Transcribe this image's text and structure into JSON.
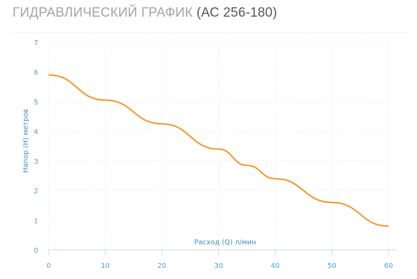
{
  "header": {
    "title_main": "ГИДРАВЛИЧЕСКИЙ ГРАФИК",
    "title_model": "(АС 256-180)"
  },
  "colors": {
    "line": "#f7931e",
    "axis_text": "#4d9fd6",
    "axis_line": "#c9d6ec",
    "grid": "#e0e0e0"
  },
  "chart_data": {
    "type": "line",
    "xlabel": "Расход (Q) л/мин",
    "ylabel": "Напор (H) метров",
    "xlim": [
      0,
      60
    ],
    "ylim": [
      0,
      7
    ],
    "x_ticks": [
      "0",
      "10",
      "20",
      "30",
      "40",
      "50",
      "60"
    ],
    "y_ticks": [
      "0",
      "1",
      "2",
      "3",
      "4",
      "5",
      "6",
      "7"
    ],
    "grid": true,
    "series": [
      {
        "x": [
          0,
          10,
          20,
          30,
          35,
          40,
          50,
          60
        ],
        "y": [
          5.9,
          5.05,
          4.25,
          3.4,
          2.85,
          2.4,
          1.6,
          0.8
        ]
      }
    ]
  }
}
